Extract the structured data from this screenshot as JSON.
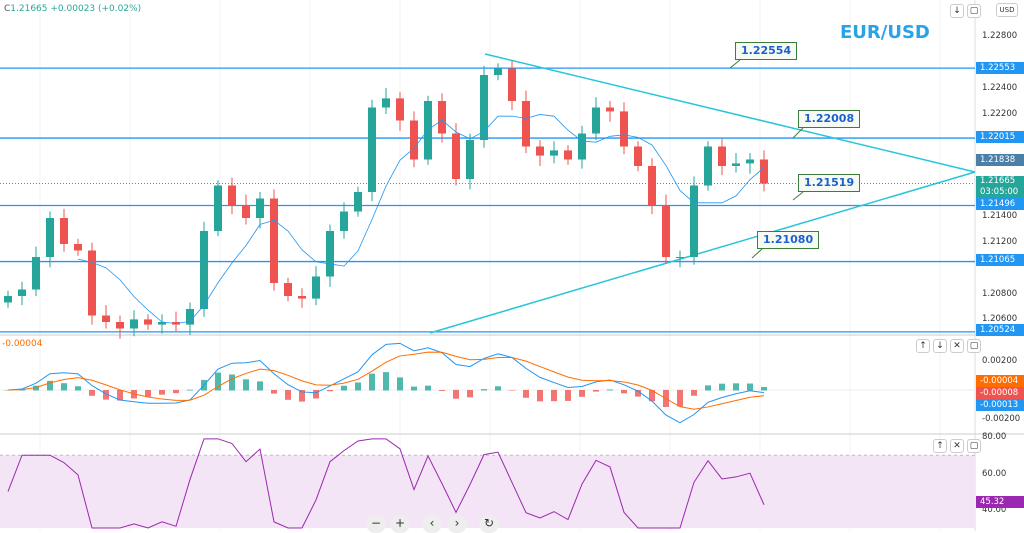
{
  "legend": {
    "close": "C",
    "close_value": "1.21665",
    "change": "+0.00023 (+0.02%)"
  },
  "title": "EUR/USD",
  "currency": "USD",
  "macd_value": "-0.00004",
  "colors": {
    "up": "#26a69a",
    "down": "#ef5350",
    "level": "#2196f3",
    "trend": "#26c6da",
    "ma": "#2196f3",
    "rsi": "#9c27b0"
  },
  "price_axis": [
    "1.22800",
    "1.22400",
    "1.22200",
    "1.21400",
    "1.21200",
    "1.20800",
    "1.20600"
  ],
  "level_tags": [
    "1.22553",
    "1.22015",
    "1.21496",
    "1.21065",
    "1.20524"
  ],
  "current_tag": {
    "value": "1.21838"
  },
  "last_price": {
    "value": "1.21665",
    "countdown": "03:05:00"
  },
  "annotations": [
    "1.22554",
    "1.22008",
    "1.21519",
    "1.21080"
  ],
  "macd_axis": [
    "0.00200",
    "-0.00200"
  ],
  "macd_tags": [
    "-0.00004",
    "-0.00008",
    "-0.00013"
  ],
  "rsi_axis": [
    "80.00",
    "60.00",
    "40.00"
  ],
  "rsi_tag": "45.32",
  "pane_buttons": {
    "up": "↑",
    "down": "↓",
    "close": "✕",
    "max": "▢"
  },
  "nav": {
    "zoom_out": "−",
    "zoom_in": "+",
    "left": "‹",
    "right": "›",
    "reset": "↻"
  },
  "chart_data": {
    "type": "candlestick",
    "closes": [
      1.208,
      1.2085,
      1.211,
      1.214,
      1.212,
      1.2115,
      1.2065,
      1.206,
      1.2055,
      1.2062,
      1.2058,
      1.206,
      1.2058,
      1.207,
      1.213,
      1.2165,
      1.215,
      1.214,
      1.2155,
      1.209,
      1.208,
      1.2078,
      1.2095,
      1.213,
      1.2145,
      1.216,
      1.2225,
      1.2232,
      1.2215,
      1.2185,
      1.223,
      1.2205,
      1.217,
      1.22,
      1.225,
      1.2255,
      1.223,
      1.2195,
      1.2188,
      1.2192,
      1.2185,
      1.2205,
      1.2225,
      1.2222,
      1.2195,
      1.218,
      1.215,
      1.211,
      1.211,
      1.2165,
      1.2195,
      1.218,
      1.2182,
      1.2185,
      1.21665
    ],
    "levels": [
      1.22553,
      1.22015,
      1.21496,
      1.21065,
      1.20524
    ]
  }
}
